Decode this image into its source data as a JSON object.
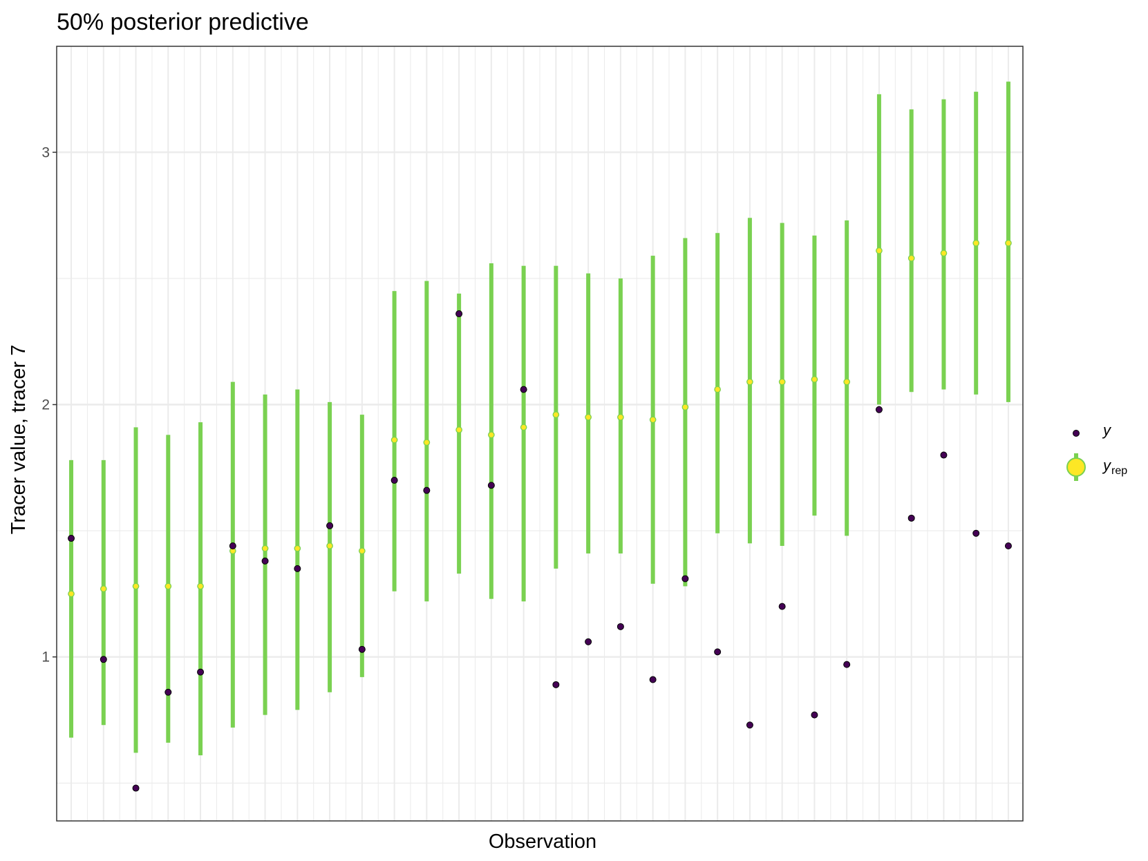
{
  "chart_data": {
    "type": "scatter",
    "title": "50% posterior predictive",
    "xlabel": "Observation",
    "ylabel": "Tracer value, tracer 7",
    "ylim": [
      0.35,
      3.42
    ],
    "xlim": [
      0.55,
      30.45
    ],
    "y_ticks": [
      "1",
      "2",
      "3"
    ],
    "grid": true,
    "legend_position": "right",
    "legend": [
      {
        "key": "y",
        "label": "y",
        "subscript": ""
      },
      {
        "key": "yrep",
        "label": "y",
        "subscript": "rep"
      }
    ],
    "colors": {
      "y_fill": "#440154",
      "yrep_fill": "#fde725",
      "yrep_interval": "#7ad151",
      "grid": "#ebebeb",
      "panel_border": "#333333"
    },
    "series": [
      {
        "name": "y",
        "x": [
          1,
          2,
          3,
          4,
          5,
          6,
          7,
          8,
          9,
          10,
          11,
          12,
          13,
          14,
          15,
          16,
          17,
          18,
          19,
          20,
          21,
          22,
          23,
          24,
          25,
          26,
          27,
          28,
          29,
          30
        ],
        "values": [
          1.47,
          0.99,
          0.48,
          0.86,
          0.94,
          1.44,
          1.38,
          1.35,
          1.52,
          1.03,
          1.7,
          1.66,
          2.36,
          1.68,
          2.06,
          0.89,
          1.06,
          1.12,
          0.91,
          1.31,
          1.02,
          0.73,
          1.2,
          0.77,
          0.97,
          1.98,
          1.55,
          1.8,
          1.49,
          1.44
        ]
      },
      {
        "name": "y_rep",
        "x": [
          1,
          2,
          3,
          4,
          5,
          6,
          7,
          8,
          9,
          10,
          11,
          12,
          13,
          14,
          15,
          16,
          17,
          18,
          19,
          20,
          21,
          22,
          23,
          24,
          25,
          26,
          27,
          28,
          29,
          30
        ],
        "values": [
          1.25,
          1.27,
          1.28,
          1.28,
          1.28,
          1.42,
          1.43,
          1.43,
          1.44,
          1.42,
          1.86,
          1.85,
          1.9,
          1.88,
          1.91,
          1.96,
          1.95,
          1.95,
          1.94,
          1.99,
          2.06,
          2.09,
          2.09,
          2.1,
          2.09,
          2.61,
          2.58,
          2.6,
          2.64,
          2.64
        ],
        "lower": [
          0.68,
          0.73,
          0.62,
          0.66,
          0.61,
          0.72,
          0.77,
          0.79,
          0.86,
          0.92,
          1.26,
          1.22,
          1.33,
          1.23,
          1.22,
          1.35,
          1.41,
          1.41,
          1.29,
          1.28,
          1.49,
          1.45,
          1.44,
          1.56,
          1.48,
          2.0,
          2.05,
          2.06,
          2.04,
          2.01
        ],
        "upper": [
          1.78,
          1.78,
          1.91,
          1.88,
          1.93,
          2.09,
          2.04,
          2.06,
          2.01,
          1.96,
          2.45,
          2.49,
          2.44,
          2.56,
          2.55,
          2.55,
          2.52,
          2.5,
          2.59,
          2.66,
          2.68,
          2.74,
          2.72,
          2.67,
          2.73,
          3.23,
          3.17,
          3.21,
          3.24,
          3.28
        ]
      }
    ]
  }
}
